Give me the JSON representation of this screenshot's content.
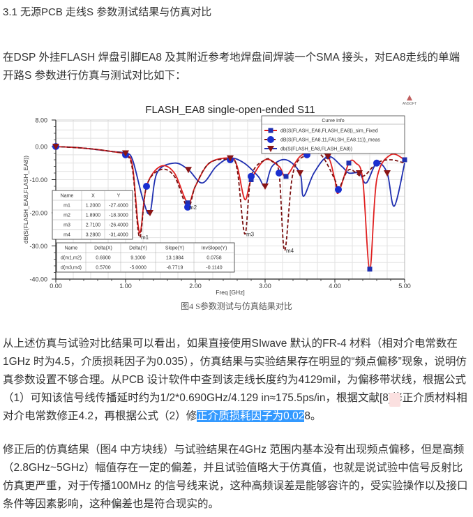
{
  "heading": "3.1 无源PCB 走线S 参数测试结果与仿真对比",
  "paragraphs": {
    "intro": "在DSP 外挂FLASH 焊盘引脚EA8 及其附近参考地焊盘间焊装一个SMA 接头，对EA8走线的单端开路S 参数进行仿真与测试对比如下：",
    "analysis_before": "从上述仿真与试验对比结果可以看出，如果直接使用SIwave 默认的FR-4 材料（相对介电常数在1GHz 时为4.5，介质损耗因子为0.035），仿真结果与实验结果存在明显的“频点偏移”现象，说明仿真参数设置不够合理。从PCB 设计软件中查到该走线长度约为4129mil，为偏移带状线，根据公式（1）可知该信号线传播延时约为1/2*0.690GHz/4.129 in≈175.5ps/in，根据文献[8]修正介质材料相对介电常数修正4.2，再根据公式（2）修",
    "analysis_highlight": "正介质损耗因子为0.02",
    "analysis_after": "8。",
    "conclusion": "修正后的仿真结果（图4 中方块线）与试验结果在4GHz 范围内基本没有出现频点偏移，但是高频（2.8GHz~5GHz）幅值存在一定的偏差，并且试验值略大于仿真值，也就是说试验中信号反射比仿真更严重，对于传播100MHz 的信号线来说，这种高频误差是能够容许的，受实验操作以及接口条件等因素影响，这种偏差也是符合现实的。"
  },
  "figure": {
    "caption": "图4 S参数测试与仿真结果对比",
    "logo": "ANSOFT"
  },
  "chart_data": {
    "type": "line",
    "title": "FLASH_EA8 single-open-ended S11",
    "xlabel": "Freq [GHz]",
    "ylabel": "dB(S(FLASH_EA8,FLASH_EA8))",
    "xlim": [
      0,
      5
    ],
    "ylim": [
      -40,
      8
    ],
    "x_ticks": [
      "0.00",
      "1.00",
      "2.00",
      "3.00",
      "4.00",
      "5.00"
    ],
    "y_ticks": [
      "8.00",
      "0.00",
      "-10.00",
      "-20.00",
      "-30.00",
      "-40.00"
    ],
    "grid": true,
    "legend_title": "Curve Info",
    "legend_position": "top-right",
    "series": [
      {
        "name": "dB(S(FLASH_EA8,FLASH_EA8))_sim_Fixed",
        "color": "#e02020",
        "style": "solid",
        "marker": "square",
        "points": [
          [
            0,
            0
          ],
          [
            0.4,
            -0.5
          ],
          [
            0.8,
            -1.5
          ],
          [
            1.0,
            -2.5
          ],
          [
            1.1,
            -6
          ],
          [
            1.2,
            -26
          ],
          [
            1.3,
            -12
          ],
          [
            1.5,
            -6
          ],
          [
            1.7,
            -8
          ],
          [
            1.89,
            -17
          ],
          [
            2.0,
            -12
          ],
          [
            2.2,
            -5
          ],
          [
            2.5,
            -3.5
          ],
          [
            2.6,
            -6
          ],
          [
            2.71,
            -16
          ],
          [
            2.8,
            -10
          ],
          [
            3.0,
            -4
          ],
          [
            3.2,
            -6
          ],
          [
            3.3,
            -9
          ],
          [
            3.5,
            -3
          ],
          [
            3.7,
            -1.5
          ],
          [
            3.9,
            -3
          ],
          [
            4.0,
            -10
          ],
          [
            4.05,
            -14
          ],
          [
            4.2,
            -5
          ],
          [
            4.3,
            -5
          ],
          [
            4.4,
            -10
          ],
          [
            4.5,
            -37
          ],
          [
            4.6,
            -10
          ],
          [
            4.8,
            -2.5
          ],
          [
            5.0,
            -4
          ]
        ]
      },
      {
        "name": "dB(S(FLASH_EA8.11,FALSH_EA8.11))_meas",
        "color": "#7a1010",
        "style": "dashed",
        "marker": "circle",
        "points": [
          [
            0,
            0
          ],
          [
            0.4,
            -0.5
          ],
          [
            0.8,
            -1.5
          ],
          [
            1.0,
            -2.5
          ],
          [
            1.1,
            -7
          ],
          [
            1.2,
            -27.4
          ],
          [
            1.3,
            -12
          ],
          [
            1.5,
            -7
          ],
          [
            1.7,
            -9
          ],
          [
            1.89,
            -18.3
          ],
          [
            2.0,
            -12
          ],
          [
            2.2,
            -5
          ],
          [
            2.5,
            -4
          ],
          [
            2.6,
            -7
          ],
          [
            2.71,
            -26.4
          ],
          [
            2.8,
            -9
          ],
          [
            3.0,
            -4
          ],
          [
            3.1,
            -4.5
          ],
          [
            3.2,
            -8
          ],
          [
            3.28,
            -31.4
          ],
          [
            3.4,
            -8
          ],
          [
            3.6,
            -2.5
          ],
          [
            3.8,
            -2.5
          ],
          [
            4.0,
            -10
          ],
          [
            4.05,
            -13
          ],
          [
            4.2,
            -7
          ],
          [
            4.4,
            -9
          ],
          [
            4.6,
            -5
          ],
          [
            4.8,
            -4
          ],
          [
            5.0,
            -5
          ]
        ]
      },
      {
        "name": "db(S(FLASH_EA8,FLASH_EA8))",
        "color": "#1f2fb0",
        "style": "solid",
        "marker": "triangle-down",
        "points": [
          [
            0,
            0
          ],
          [
            0.4,
            -0.5
          ],
          [
            0.8,
            -1.5
          ],
          [
            1.0,
            -2
          ],
          [
            1.1,
            -4
          ],
          [
            1.25,
            -16
          ],
          [
            1.35,
            -20
          ],
          [
            1.45,
            -8
          ],
          [
            1.7,
            -5
          ],
          [
            1.9,
            -7
          ],
          [
            2.1,
            -11
          ],
          [
            2.3,
            -6
          ],
          [
            2.5,
            -3.5
          ],
          [
            2.7,
            -5
          ],
          [
            2.9,
            -9
          ],
          [
            3.0,
            -12
          ],
          [
            3.1,
            -6
          ],
          [
            3.3,
            -4
          ],
          [
            3.5,
            -8
          ],
          [
            3.55,
            -15
          ],
          [
            3.7,
            -8
          ],
          [
            3.9,
            -3
          ],
          [
            4.1,
            -6
          ],
          [
            4.2,
            -8
          ],
          [
            4.35,
            -8
          ],
          [
            4.45,
            -11
          ],
          [
            4.6,
            -5
          ],
          [
            4.75,
            -8
          ],
          [
            4.85,
            -18
          ],
          [
            5.0,
            -5
          ]
        ]
      }
    ],
    "marker_table": {
      "headers": [
        "Name",
        "X",
        "Y"
      ],
      "rows": [
        [
          "m1",
          "1.2000",
          "-27.4000"
        ],
        [
          "m2",
          "1.8900",
          "-18.3000"
        ],
        [
          "m3",
          "2.7100",
          "-26.4000"
        ],
        [
          "m4",
          "3.2800",
          "-31.4000"
        ]
      ]
    },
    "delta_table": {
      "headers": [
        "Name",
        "Delta(X)",
        "Delta(Y)",
        "Slope(Y)",
        "InvSlope(Y)"
      ],
      "rows": [
        [
          "d(m1,m2)",
          "0.6900",
          "9.1000",
          "13.1884",
          "0.0758"
        ],
        [
          "d(m3,m4)",
          "0.5700",
          "-5.0000",
          "-8.7719",
          "-0.1140"
        ]
      ]
    },
    "annotations": [
      {
        "label": "m1",
        "x": 1.2,
        "y": -27.4
      },
      {
        "label": "m2",
        "x": 1.89,
        "y": -18.3
      },
      {
        "label": "m3",
        "x": 2.71,
        "y": -26.4
      },
      {
        "label": "m4",
        "x": 3.28,
        "y": -31.4
      }
    ]
  }
}
